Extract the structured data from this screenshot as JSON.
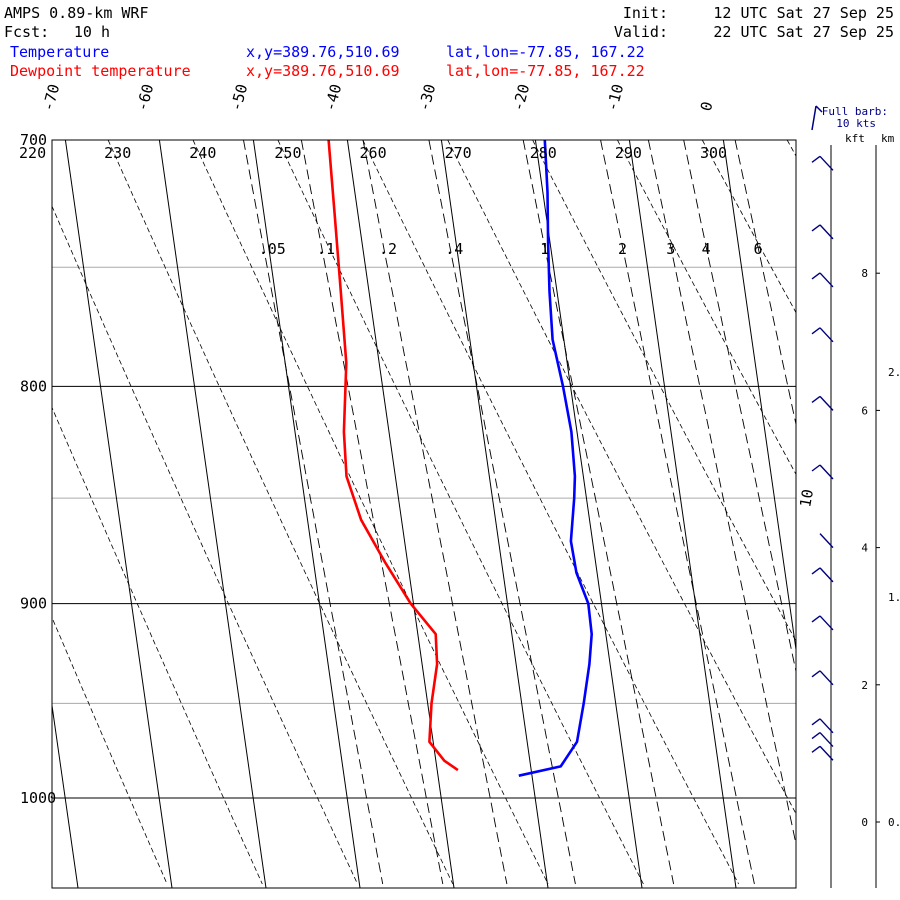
{
  "header": {
    "model": "AMPS 0.89-km WRF",
    "fcst_label": "Fcst:",
    "fcst_value": "10 h",
    "init_label": "Init:",
    "init_value": "12 UTC Sat 27 Sep 25",
    "valid_label": "Valid:",
    "valid_value": "22 UTC Sat 27 Sep 25"
  },
  "legend": [
    {
      "label": "Temperature",
      "xy": "x,y=389.76,510.69",
      "latlon": "lat,lon=-77.85, 167.22",
      "color": "#0000ff"
    },
    {
      "label": "Dewpoint temperature",
      "xy": "x,y=389.76,510.69",
      "latlon": "lat,lon=-77.85, 167.22",
      "color": "#ff0000"
    }
  ],
  "barb_key": {
    "line1": "Full barb:",
    "line2": "10 kts",
    "color": "#000080"
  },
  "height_axis": {
    "kft_label": "kft",
    "km_label": "km"
  },
  "chart_data": {
    "type": "line",
    "title": "",
    "xlabel": "",
    "ylabel": "",
    "pressure_ticks": [
      700,
      800,
      900,
      1000
    ],
    "isotherm_labels": [
      "-70",
      "-60",
      "-50",
      "-40",
      "-30",
      "-20",
      "-10",
      "0"
    ],
    "theta_labels": [
      "220",
      "230",
      "240",
      "250",
      "260",
      "270",
      "280",
      "290",
      "300"
    ],
    "mixing_ratio_labels": [
      ".05",
      ".1",
      ".2",
      ".4",
      "1",
      "2",
      "3",
      "4",
      "6"
    ],
    "side_label": "10",
    "kft_ticks": [
      "8",
      "6",
      "4",
      "2",
      "0"
    ],
    "km_ticks": [
      "2.",
      "1.",
      "0."
    ],
    "series": [
      {
        "name": "Temperature",
        "color": "#0000ff",
        "points": [
          {
            "p": 700,
            "t": -19.0
          },
          {
            "p": 720,
            "t": -19.5
          },
          {
            "p": 740,
            "t": -20.2
          },
          {
            "p": 760,
            "t": -20.8
          },
          {
            "p": 780,
            "t": -21.2
          },
          {
            "p": 800,
            "t": -20.8
          },
          {
            "p": 820,
            "t": -20.6
          },
          {
            "p": 840,
            "t": -20.9
          },
          {
            "p": 850,
            "t": -21.3
          },
          {
            "p": 870,
            "t": -22.3
          },
          {
            "p": 885,
            "t": -22.2
          },
          {
            "p": 900,
            "t": -21.4
          },
          {
            "p": 915,
            "t": -21.5
          },
          {
            "p": 930,
            "t": -22.2
          },
          {
            "p": 950,
            "t": -23.4
          },
          {
            "p": 970,
            "t": -24.7
          },
          {
            "p": 983,
            "t": -26.8
          },
          {
            "p": 988,
            "t": -31.4
          }
        ]
      },
      {
        "name": "Dewpoint temperature",
        "color": "#ff0000",
        "points": [
          {
            "p": 700,
            "t": -42.0
          },
          {
            "p": 730,
            "t": -42.5
          },
          {
            "p": 760,
            "t": -43.0
          },
          {
            "p": 790,
            "t": -43.5
          },
          {
            "p": 820,
            "t": -44.8
          },
          {
            "p": 840,
            "t": -45.2
          },
          {
            "p": 860,
            "t": -44.3
          },
          {
            "p": 880,
            "t": -42.4
          },
          {
            "p": 900,
            "t": -40.3
          },
          {
            "p": 915,
            "t": -38.1
          },
          {
            "p": 930,
            "t": -38.4
          },
          {
            "p": 950,
            "t": -39.6
          },
          {
            "p": 970,
            "t": -40.4
          },
          {
            "p": 980,
            "t": -39.1
          },
          {
            "p": 985,
            "t": -37.8
          }
        ]
      }
    ],
    "wind_barbs": [
      {
        "height_kft": 9.5,
        "barbs": 1
      },
      {
        "height_kft": 8.5,
        "barbs": 1
      },
      {
        "height_kft": 7.8,
        "barbs": 1
      },
      {
        "height_kft": 7.0,
        "barbs": 1
      },
      {
        "height_kft": 6.0,
        "barbs": 1
      },
      {
        "height_kft": 5.0,
        "barbs": 1
      },
      {
        "height_kft": 4.0,
        "barbs": 0
      },
      {
        "height_kft": 3.5,
        "barbs": 1
      },
      {
        "height_kft": 2.8,
        "barbs": 1
      },
      {
        "height_kft": 2.0,
        "barbs": 1
      },
      {
        "height_kft": 1.3,
        "barbs": 1
      },
      {
        "height_kft": 1.1,
        "barbs": 1
      },
      {
        "height_kft": 0.9,
        "barbs": 1
      }
    ]
  }
}
